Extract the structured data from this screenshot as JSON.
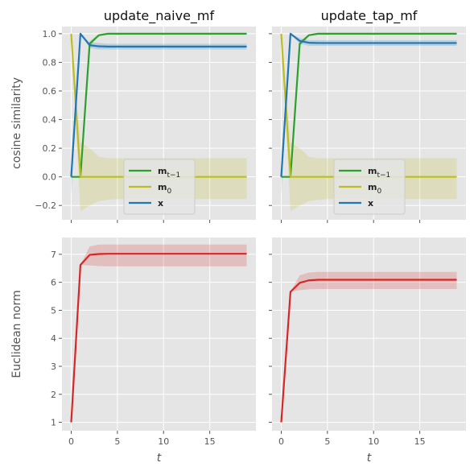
{
  "chart_data": [
    {
      "type": "line",
      "title": "update_naive_mf",
      "xlabel": "",
      "ylabel": "cosine similarity",
      "xlim": [
        -1,
        20
      ],
      "ylim": [
        -0.3,
        1.05
      ],
      "xticks": [
        0,
        5,
        10,
        15
      ],
      "yticks": [
        -0.2,
        0.0,
        0.2,
        0.4,
        0.6,
        0.8,
        1.0
      ],
      "ytick_labels": [
        "−0.2",
        "0.0",
        "0.2",
        "0.4",
        "0.6",
        "0.8",
        "1.0"
      ],
      "show_xtick_labels": false,
      "show_ytick_labels": true,
      "grid": true,
      "legend": "center-bottom",
      "x": [
        0,
        1,
        2,
        3,
        4,
        5,
        6,
        7,
        8,
        9,
        10,
        11,
        12,
        13,
        14,
        15,
        16,
        17,
        18,
        19
      ],
      "series": [
        {
          "name": "m",
          "subscript": "t−1",
          "color": "#2ca02c",
          "values": [
            0.0,
            0.0,
            0.93,
            0.99,
            1.0,
            1.0,
            1.0,
            1.0,
            1.0,
            1.0,
            1.0,
            1.0,
            1.0,
            1.0,
            1.0,
            1.0,
            1.0,
            1.0,
            1.0,
            1.0
          ],
          "lower": [
            0.0,
            0.0,
            0.91,
            0.985,
            0.995,
            1.0,
            1.0,
            1.0,
            1.0,
            1.0,
            1.0,
            1.0,
            1.0,
            1.0,
            1.0,
            1.0,
            1.0,
            1.0,
            1.0,
            1.0
          ],
          "upper": [
            0.0,
            0.0,
            0.95,
            0.995,
            1.0,
            1.0,
            1.0,
            1.0,
            1.0,
            1.0,
            1.0,
            1.0,
            1.0,
            1.0,
            1.0,
            1.0,
            1.0,
            1.0,
            1.0,
            1.0
          ]
        },
        {
          "name": "m",
          "subscript": "0",
          "color": "#bcbd22",
          "values": [
            1.0,
            0.0,
            0.0,
            0.0,
            0.0,
            0.0,
            0.0,
            0.0,
            0.0,
            0.0,
            0.0,
            0.0,
            0.0,
            0.0,
            0.0,
            0.0,
            0.0,
            0.0,
            0.0,
            0.0
          ],
          "lower": [
            1.0,
            -0.24,
            -0.2,
            -0.17,
            -0.16,
            -0.155,
            -0.155,
            -0.155,
            -0.155,
            -0.155,
            -0.155,
            -0.155,
            -0.155,
            -0.155,
            -0.155,
            -0.155,
            -0.155,
            -0.155,
            -0.155,
            -0.155
          ],
          "upper": [
            1.0,
            0.24,
            0.2,
            0.14,
            0.13,
            0.13,
            0.13,
            0.13,
            0.13,
            0.13,
            0.13,
            0.13,
            0.13,
            0.13,
            0.13,
            0.13,
            0.13,
            0.13,
            0.13,
            0.13
          ]
        },
        {
          "name": "x",
          "subscript": "",
          "color": "#1f77b4",
          "values": [
            0.0,
            1.0,
            0.92,
            0.912,
            0.91,
            0.91,
            0.91,
            0.91,
            0.91,
            0.91,
            0.91,
            0.91,
            0.91,
            0.91,
            0.91,
            0.91,
            0.91,
            0.91,
            0.91,
            0.91
          ],
          "lower": [
            -0.13,
            1.0,
            0.9,
            0.89,
            0.89,
            0.89,
            0.89,
            0.89,
            0.89,
            0.89,
            0.89,
            0.89,
            0.89,
            0.89,
            0.89,
            0.89,
            0.89,
            0.89,
            0.89,
            0.89
          ],
          "upper": [
            0.13,
            1.0,
            0.94,
            0.935,
            0.93,
            0.93,
            0.93,
            0.93,
            0.93,
            0.93,
            0.93,
            0.93,
            0.93,
            0.93,
            0.93,
            0.93,
            0.93,
            0.93,
            0.93,
            0.93
          ]
        }
      ]
    },
    {
      "type": "line",
      "title": "update_tap_mf",
      "xlabel": "",
      "ylabel": "",
      "xlim": [
        -1,
        20
      ],
      "ylim": [
        -0.3,
        1.05
      ],
      "xticks": [
        0,
        5,
        10,
        15
      ],
      "yticks": [
        -0.2,
        0.0,
        0.2,
        0.4,
        0.6,
        0.8,
        1.0
      ],
      "ytick_labels": [
        "",
        "",
        "",
        "",
        "",
        "",
        ""
      ],
      "show_xtick_labels": false,
      "show_ytick_labels": false,
      "grid": true,
      "legend": "center-bottom",
      "x": [
        0,
        1,
        2,
        3,
        4,
        5,
        6,
        7,
        8,
        9,
        10,
        11,
        12,
        13,
        14,
        15,
        16,
        17,
        18,
        19
      ],
      "series": [
        {
          "name": "m",
          "subscript": "t−1",
          "color": "#2ca02c",
          "values": [
            0.0,
            0.0,
            0.93,
            0.99,
            1.0,
            1.0,
            1.0,
            1.0,
            1.0,
            1.0,
            1.0,
            1.0,
            1.0,
            1.0,
            1.0,
            1.0,
            1.0,
            1.0,
            1.0,
            1.0
          ],
          "lower": [
            0.0,
            0.0,
            0.91,
            0.985,
            0.995,
            1.0,
            1.0,
            1.0,
            1.0,
            1.0,
            1.0,
            1.0,
            1.0,
            1.0,
            1.0,
            1.0,
            1.0,
            1.0,
            1.0,
            1.0
          ],
          "upper": [
            0.0,
            0.0,
            0.95,
            0.995,
            1.0,
            1.0,
            1.0,
            1.0,
            1.0,
            1.0,
            1.0,
            1.0,
            1.0,
            1.0,
            1.0,
            1.0,
            1.0,
            1.0,
            1.0,
            1.0
          ]
        },
        {
          "name": "m",
          "subscript": "0",
          "color": "#bcbd22",
          "values": [
            1.0,
            0.0,
            0.0,
            0.0,
            0.0,
            0.0,
            0.0,
            0.0,
            0.0,
            0.0,
            0.0,
            0.0,
            0.0,
            0.0,
            0.0,
            0.0,
            0.0,
            0.0,
            0.0,
            0.0
          ],
          "lower": [
            1.0,
            -0.24,
            -0.2,
            -0.17,
            -0.16,
            -0.155,
            -0.155,
            -0.155,
            -0.155,
            -0.155,
            -0.155,
            -0.155,
            -0.155,
            -0.155,
            -0.155,
            -0.155,
            -0.155,
            -0.155,
            -0.155,
            -0.155
          ],
          "upper": [
            1.0,
            0.24,
            0.2,
            0.14,
            0.13,
            0.13,
            0.13,
            0.13,
            0.13,
            0.13,
            0.13,
            0.13,
            0.13,
            0.13,
            0.13,
            0.13,
            0.13,
            0.13,
            0.13,
            0.13
          ]
        },
        {
          "name": "x",
          "subscript": "",
          "color": "#1f77b4",
          "values": [
            0.0,
            1.0,
            0.95,
            0.937,
            0.935,
            0.935,
            0.935,
            0.935,
            0.935,
            0.935,
            0.935,
            0.935,
            0.935,
            0.935,
            0.935,
            0.935,
            0.935,
            0.935,
            0.935,
            0.935
          ],
          "lower": [
            -0.13,
            1.0,
            0.93,
            0.915,
            0.915,
            0.915,
            0.915,
            0.915,
            0.915,
            0.915,
            0.915,
            0.915,
            0.915,
            0.915,
            0.915,
            0.915,
            0.915,
            0.915,
            0.915,
            0.915
          ],
          "upper": [
            0.13,
            1.0,
            0.97,
            0.955,
            0.955,
            0.955,
            0.955,
            0.955,
            0.955,
            0.955,
            0.955,
            0.955,
            0.955,
            0.955,
            0.955,
            0.955,
            0.955,
            0.955,
            0.955,
            0.955
          ]
        }
      ]
    },
    {
      "type": "line",
      "title": "",
      "xlabel": "t",
      "ylabel": "Euclidean norm",
      "xlim": [
        -1,
        20
      ],
      "ylim": [
        0.7,
        7.6
      ],
      "xticks": [
        0,
        5,
        10,
        15
      ],
      "yticks": [
        1,
        2,
        3,
        4,
        5,
        6,
        7
      ],
      "ytick_labels": [
        "1",
        "2",
        "3",
        "4",
        "5",
        "6",
        "7"
      ],
      "show_xtick_labels": true,
      "show_ytick_labels": true,
      "grid": true,
      "legend": "none",
      "x": [
        0,
        1,
        2,
        3,
        4,
        5,
        6,
        7,
        8,
        9,
        10,
        11,
        12,
        13,
        14,
        15,
        16,
        17,
        18,
        19
      ],
      "series": [
        {
          "name": "",
          "subscript": "",
          "color": "#d62728",
          "values": [
            1.0,
            6.62,
            6.98,
            7.01,
            7.02,
            7.02,
            7.02,
            7.02,
            7.02,
            7.02,
            7.02,
            7.02,
            7.02,
            7.02,
            7.02,
            7.02,
            7.02,
            7.02,
            7.02,
            7.02
          ],
          "lower": [
            1.0,
            6.62,
            6.6,
            6.58,
            6.57,
            6.57,
            6.57,
            6.57,
            6.57,
            6.57,
            6.57,
            6.57,
            6.57,
            6.57,
            6.57,
            6.57,
            6.57,
            6.57,
            6.57,
            6.57
          ],
          "upper": [
            1.0,
            6.62,
            7.28,
            7.35,
            7.35,
            7.35,
            7.35,
            7.35,
            7.35,
            7.35,
            7.35,
            7.35,
            7.35,
            7.35,
            7.35,
            7.35,
            7.35,
            7.35,
            7.35,
            7.35
          ]
        }
      ]
    },
    {
      "type": "line",
      "title": "",
      "xlabel": "t",
      "ylabel": "",
      "xlim": [
        -1,
        20
      ],
      "ylim": [
        0.7,
        7.6
      ],
      "xticks": [
        0,
        5,
        10,
        15
      ],
      "yticks": [
        1,
        2,
        3,
        4,
        5,
        6,
        7
      ],
      "ytick_labels": [
        "",
        "",
        "",
        "",
        "",
        "",
        ""
      ],
      "show_xtick_labels": true,
      "show_ytick_labels": false,
      "grid": true,
      "legend": "none",
      "x": [
        0,
        1,
        2,
        3,
        4,
        5,
        6,
        7,
        8,
        9,
        10,
        11,
        12,
        13,
        14,
        15,
        16,
        17,
        18,
        19
      ],
      "series": [
        {
          "name": "",
          "subscript": "",
          "color": "#d62728",
          "values": [
            1.0,
            5.66,
            5.98,
            6.07,
            6.09,
            6.09,
            6.09,
            6.09,
            6.09,
            6.09,
            6.09,
            6.09,
            6.09,
            6.09,
            6.09,
            6.09,
            6.09,
            6.09,
            6.09,
            6.09
          ],
          "lower": [
            1.0,
            5.66,
            5.72,
            5.75,
            5.76,
            5.76,
            5.76,
            5.76,
            5.76,
            5.76,
            5.76,
            5.76,
            5.76,
            5.76,
            5.76,
            5.76,
            5.76,
            5.76,
            5.76,
            5.76
          ],
          "upper": [
            1.0,
            5.66,
            6.25,
            6.35,
            6.37,
            6.37,
            6.37,
            6.37,
            6.37,
            6.37,
            6.37,
            6.37,
            6.37,
            6.37,
            6.37,
            6.37,
            6.37,
            6.37,
            6.37,
            6.37
          ]
        }
      ]
    }
  ]
}
